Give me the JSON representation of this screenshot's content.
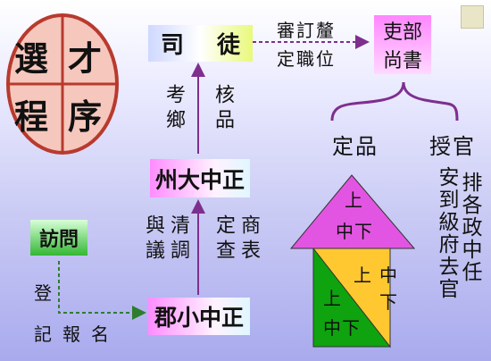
{
  "selection_circle": {
    "quadrants": [
      "選",
      "才",
      "程",
      "序"
    ]
  },
  "situ": {
    "left": "司",
    "right": "徒"
  },
  "libu": {
    "line1": "吏部",
    "line2": "尚書"
  },
  "arrow_label_top": {
    "line1": "審訂釐",
    "line2": "定職位"
  },
  "kao_he": {
    "col1": "考鄉",
    "col2": "核品"
  },
  "zhou_zhongzheng": "州大中正",
  "yu_qing": {
    "col1": "與議",
    "col2": "清調"
  },
  "ding_shang": {
    "col1": "定查",
    "col2": "商表"
  },
  "fangwen": "訪問",
  "dengji": {
    "deng": "登",
    "ji": "記",
    "bao": "報",
    "ming": "名"
  },
  "jun_zhongzheng": "郡小中正",
  "dingpin": "定品",
  "shouguan": "授官",
  "shouguan_desc": {
    "col1": "安到級府去官",
    "col2": "排各政中任"
  },
  "grades": {
    "top": {
      "line1": "上",
      "line2": "中下"
    },
    "middle": {
      "line1": "上",
      "line2": "中",
      "line3": "下"
    },
    "lower": {
      "line1": "上",
      "line2": "中下"
    }
  },
  "colors": {
    "magenta": "#e255e2",
    "yellow": "#ffc830",
    "green": "#0fa30f",
    "circle": "#f6c7bc",
    "circle_border": "#b83a2e",
    "arrow": "#7e2f8e"
  }
}
